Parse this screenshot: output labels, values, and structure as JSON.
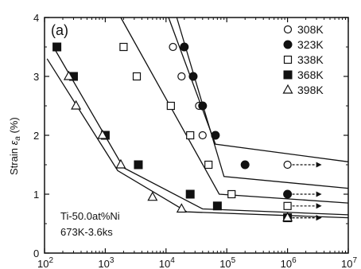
{
  "chart_data": {
    "type": "scatter",
    "panel_label": "(a)",
    "ylabel": "Strain ε_a (%)",
    "ylabel_main": "Strain ",
    "ylabel_symbol": "ε",
    "ylabel_sub": "a",
    "ylabel_unit": " (%)",
    "x_scale": "log",
    "xlim": [
      100,
      10000000
    ],
    "ylim": [
      0,
      4
    ],
    "x_ticks": [
      {
        "value": 100,
        "base": "10",
        "exp": "2"
      },
      {
        "value": 1000,
        "base": "10",
        "exp": "3"
      },
      {
        "value": 10000,
        "base": "10",
        "exp": "4"
      },
      {
        "value": 100000,
        "base": "10",
        "exp": "5"
      },
      {
        "value": 1000000,
        "base": "10",
        "exp": "6"
      },
      {
        "value": 10000000,
        "base": "10",
        "exp": "7"
      }
    ],
    "y_ticks": [
      {
        "value": 0,
        "label": "0"
      },
      {
        "value": 1,
        "label": "1"
      },
      {
        "value": 2,
        "label": "2"
      },
      {
        "value": 3,
        "label": "3"
      },
      {
        "value": 4,
        "label": "4"
      }
    ],
    "grid": false,
    "legend_position": "top-right",
    "series": [
      {
        "name": "308K",
        "marker": "circle-open",
        "points": [
          [
            13000,
            3.5
          ],
          [
            18000,
            3.0
          ],
          [
            35000,
            2.5
          ],
          [
            40000,
            2.0
          ],
          [
            1000000,
            1.5
          ]
        ],
        "runout": true,
        "fit": [
          [
            11000,
            4.0
          ],
          [
            65000,
            1.85
          ],
          [
            10000000,
            1.55
          ]
        ]
      },
      {
        "name": "323K",
        "marker": "circle-filled",
        "points": [
          [
            20000,
            3.5
          ],
          [
            28000,
            3.0
          ],
          [
            40000,
            2.5
          ],
          [
            65000,
            2.0
          ],
          [
            200000,
            1.5
          ],
          [
            1000000,
            1.0
          ]
        ],
        "runout": true,
        "fit": [
          [
            15000,
            4.0
          ],
          [
            90000,
            1.3
          ],
          [
            10000000,
            1.1
          ]
        ]
      },
      {
        "name": "338K",
        "marker": "square-open",
        "points": [
          [
            2000,
            3.5
          ],
          [
            3300,
            3.0
          ],
          [
            12000,
            2.5
          ],
          [
            25000,
            2.0
          ],
          [
            50000,
            1.5
          ],
          [
            120000,
            1.0
          ],
          [
            1000000,
            0.8
          ]
        ],
        "runout": true,
        "fit": [
          [
            1800,
            4.0
          ],
          [
            75000,
            1.0
          ],
          [
            10000000,
            0.85
          ]
        ]
      },
      {
        "name": "368K",
        "marker": "square-filled",
        "points": [
          [
            160,
            3.5
          ],
          [
            300,
            3.0
          ],
          [
            1000,
            2.0
          ],
          [
            3500,
            1.5
          ],
          [
            25000,
            1.0
          ],
          [
            70000,
            0.8
          ],
          [
            1000000,
            0.6
          ]
        ],
        "runout": true,
        "fit": [
          [
            140,
            3.5
          ],
          [
            2000,
            1.45
          ],
          [
            40000,
            0.75
          ],
          [
            10000000,
            0.65
          ]
        ]
      },
      {
        "name": "398K",
        "marker": "triangle-open",
        "points": [
          [
            250,
            3.0
          ],
          [
            330,
            2.5
          ],
          [
            900,
            2.0
          ],
          [
            1800,
            1.5
          ],
          [
            6000,
            0.95
          ],
          [
            18000,
            0.75
          ],
          [
            1000000,
            0.6
          ]
        ],
        "runout": true,
        "fit": [
          [
            110,
            3.3
          ],
          [
            1600,
            1.4
          ],
          [
            22000,
            0.7
          ],
          [
            10000000,
            0.6
          ]
        ]
      }
    ],
    "annotations": [
      "Ti-50.0at%Ni",
      "673K-3.6ks"
    ]
  }
}
